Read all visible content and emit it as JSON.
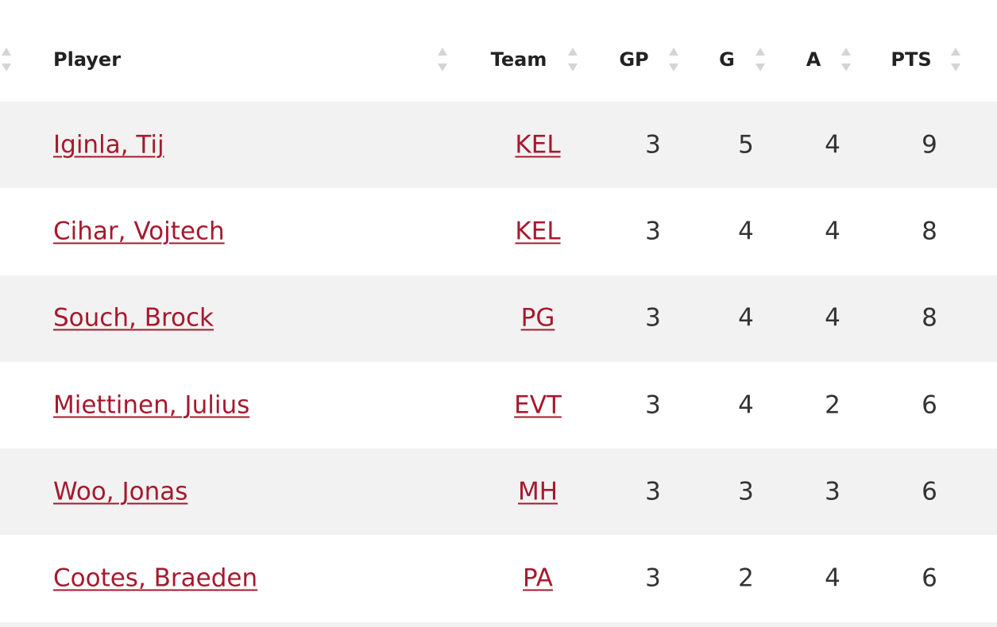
{
  "table": {
    "columns": [
      "Player",
      "Team",
      "GP",
      "G",
      "A",
      "PTS"
    ],
    "rows": [
      [
        "Iginla, Tij",
        "KEL",
        3,
        5,
        4,
        9
      ],
      [
        "Cihar, Vojtech",
        "KEL",
        3,
        4,
        4,
        8
      ],
      [
        "Souch, Brock",
        "PG",
        3,
        4,
        4,
        8
      ],
      [
        "Miettinen, Julius",
        "EVT",
        3,
        4,
        2,
        6
      ],
      [
        "Woo, Jonas",
        "MH",
        3,
        3,
        3,
        6
      ],
      [
        "Cootes, Braeden",
        "PA",
        3,
        2,
        4,
        6
      ]
    ]
  }
}
